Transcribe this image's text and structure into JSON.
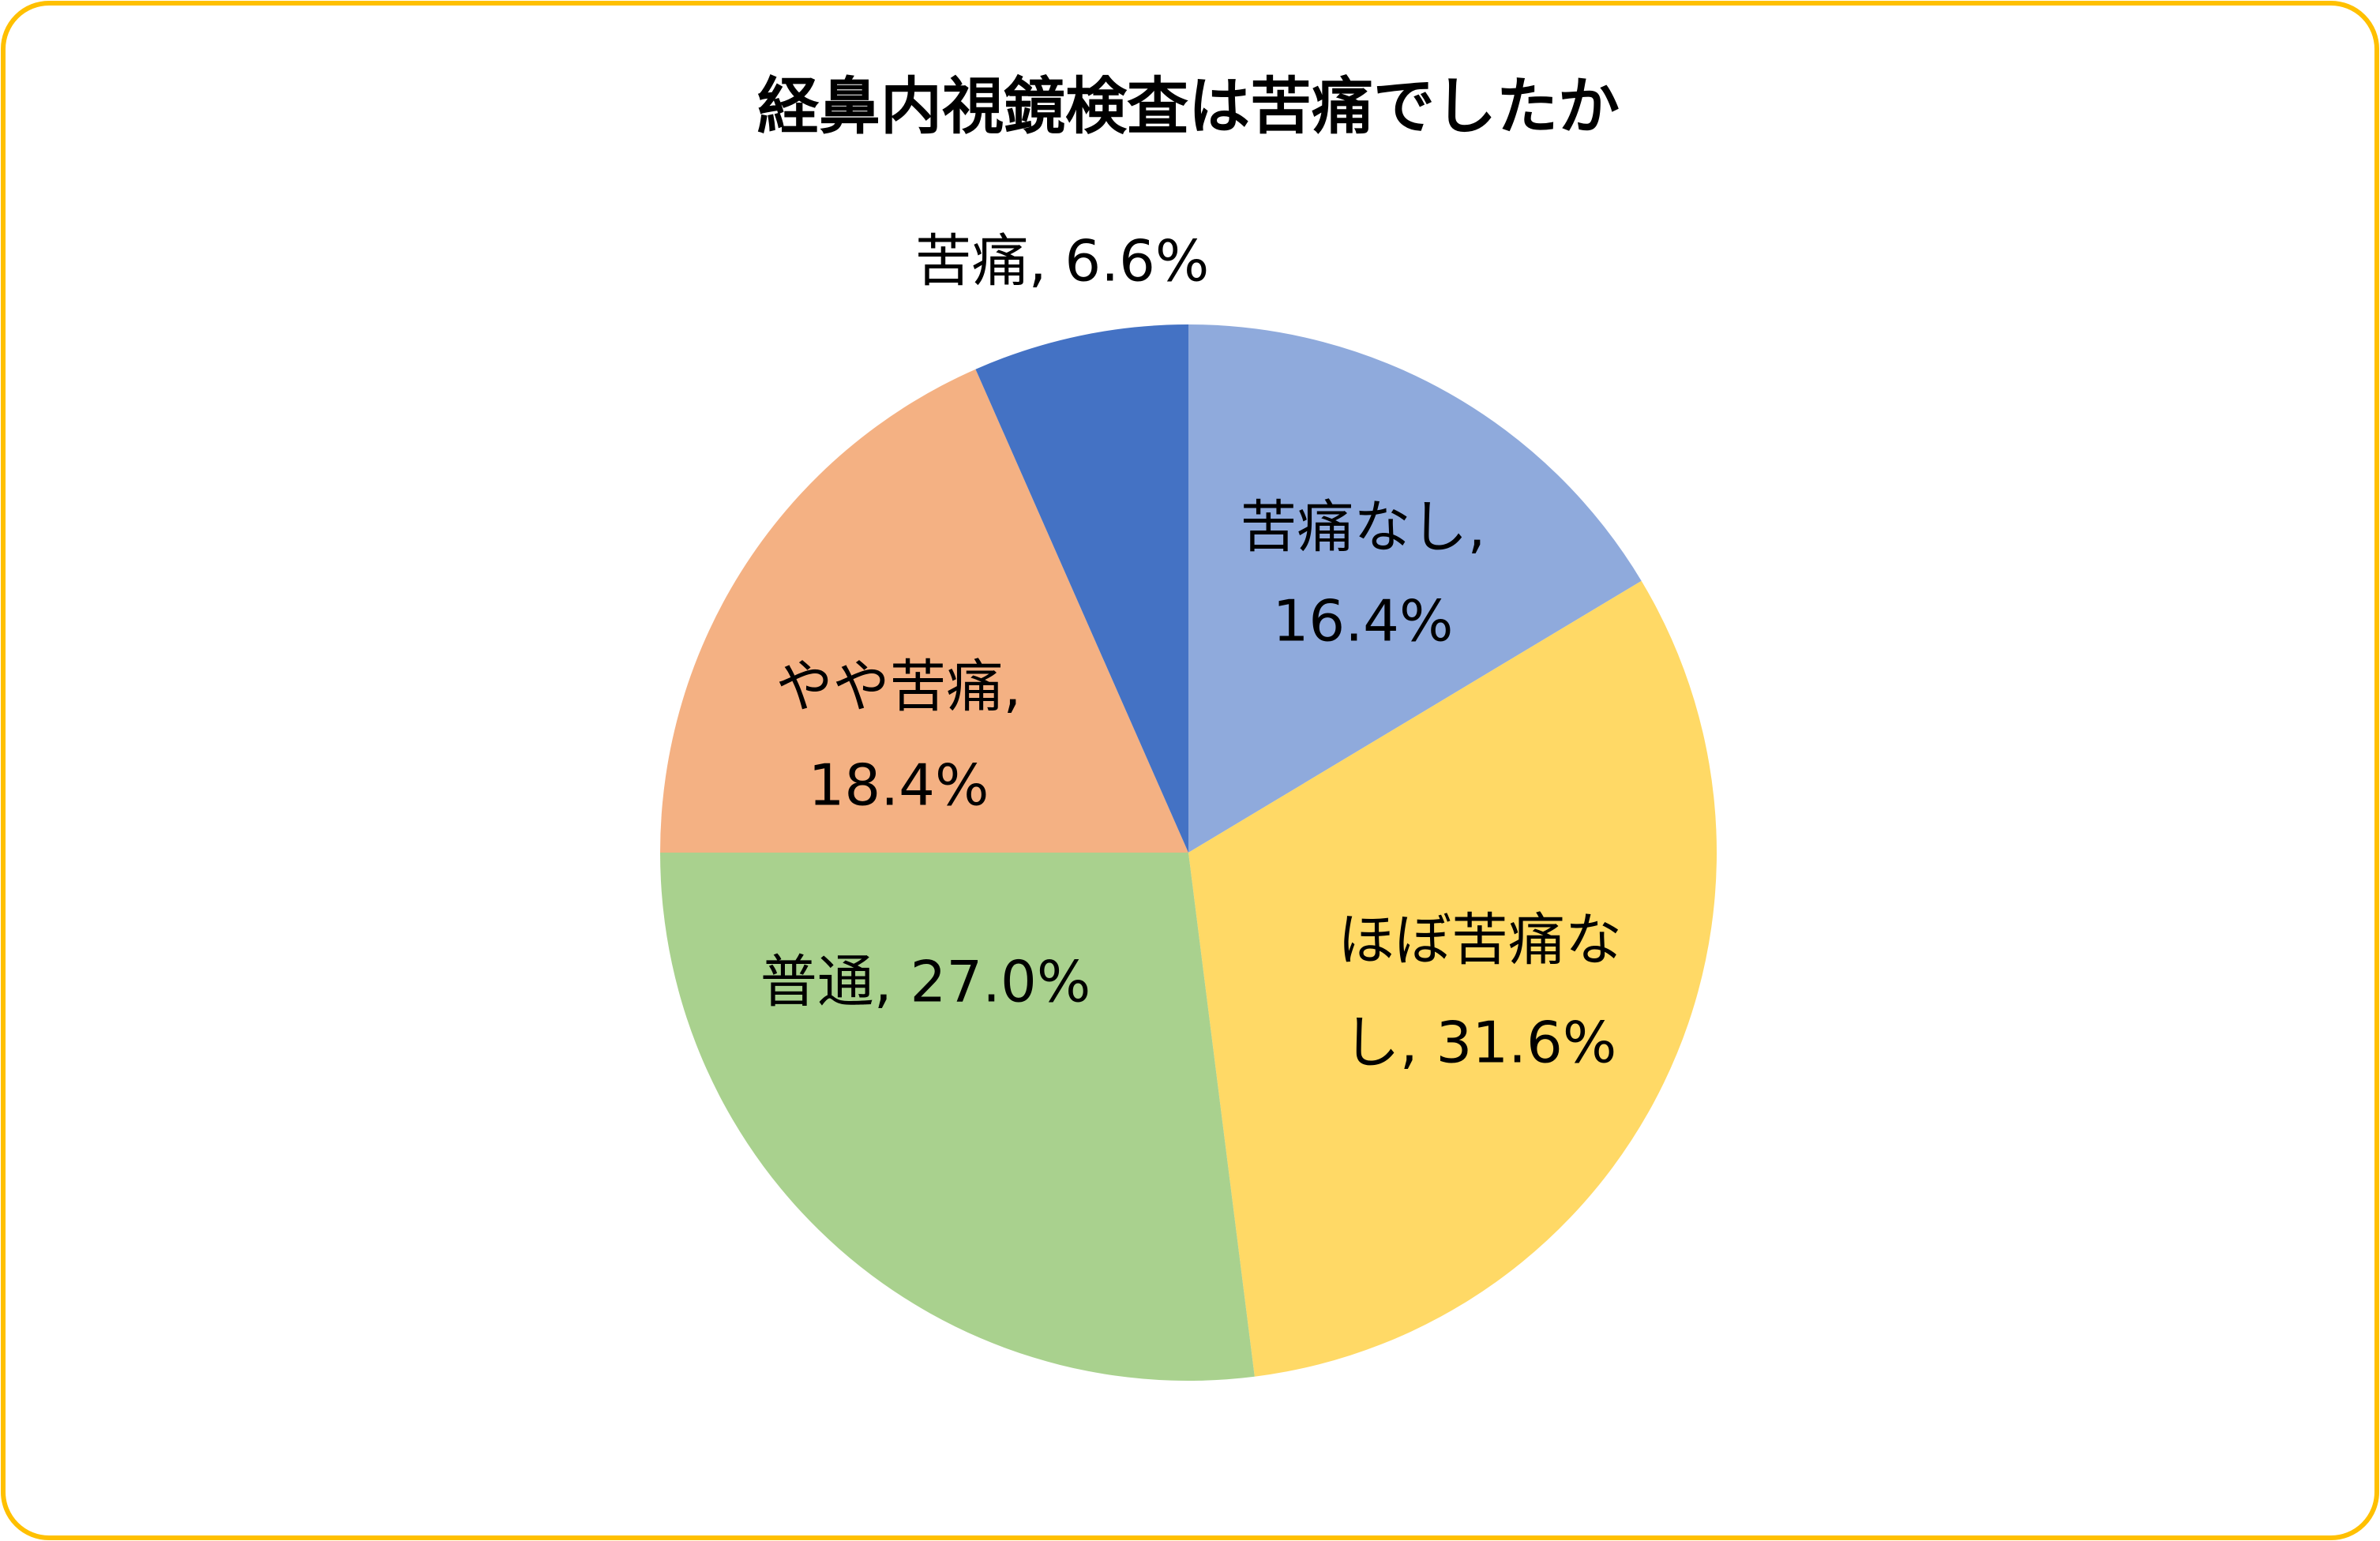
{
  "chart_data": {
    "type": "pie",
    "title": "経鼻内視鏡検査は苦痛でしたか",
    "categories": [
      "苦痛なし",
      "ほぼ苦痛なし",
      "普通",
      "やや苦痛",
      "苦痛"
    ],
    "values": [
      16.4,
      31.6,
      27.0,
      18.4,
      6.6
    ],
    "value_labels": [
      [
        "苦痛なし,",
        "16.4%"
      ],
      [
        "ほぼ苦痛な",
        "し, 31.6%"
      ],
      [
        "普通, 27.0%"
      ],
      [
        "やや苦痛,",
        "18.4%"
      ],
      [
        "苦痛, 6.6%"
      ]
    ],
    "colors": [
      "#8faadc",
      "#ffd966",
      "#a9d18e",
      "#f4b183",
      "#4472c4"
    ]
  }
}
